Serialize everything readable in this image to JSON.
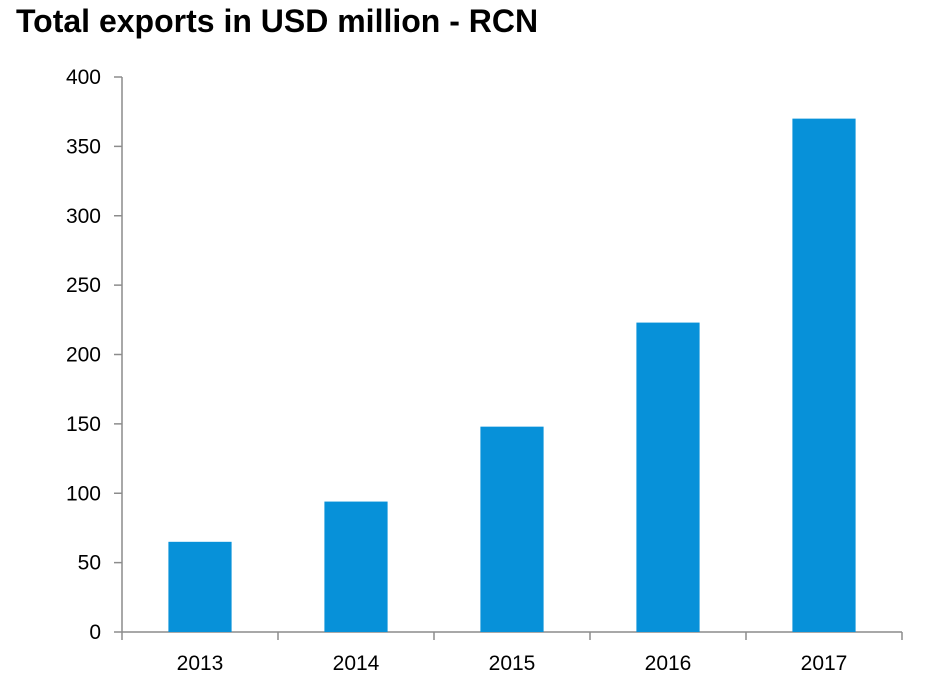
{
  "chart_data": {
    "type": "bar",
    "title": "Total exports in USD million - RCN",
    "xlabel": "",
    "ylabel": "",
    "categories": [
      "2013",
      "2014",
      "2015",
      "2016",
      "2017"
    ],
    "values": [
      65,
      94,
      148,
      223,
      370
    ],
    "ylim": [
      0,
      400
    ],
    "yticks": [
      0,
      50,
      100,
      150,
      200,
      250,
      300,
      350,
      400
    ],
    "bar_color": "#0791d9",
    "axis_color": "#8c8c8c",
    "grid": false,
    "legend": "none"
  }
}
